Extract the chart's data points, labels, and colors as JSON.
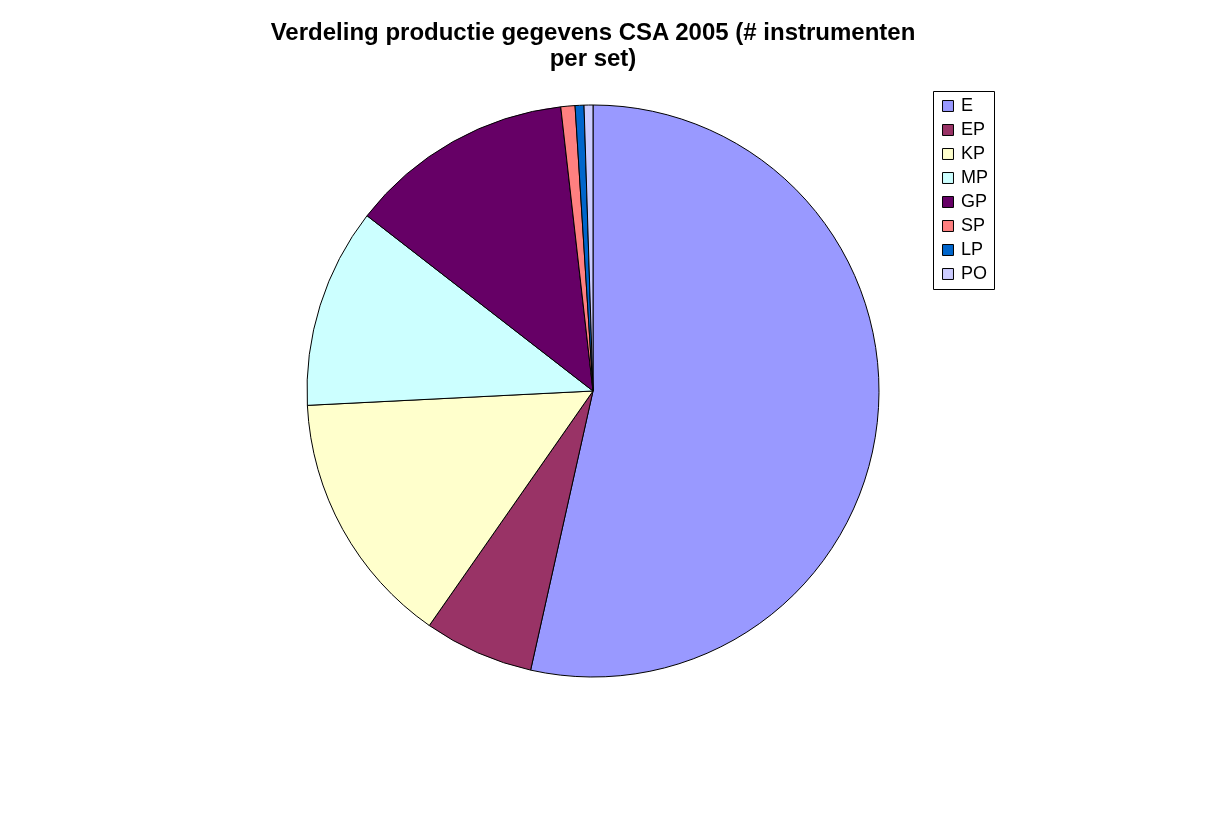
{
  "chart_data": {
    "type": "pie",
    "title": "Verdeling productie gegevens CSA 2005 (# instrumenten per set)",
    "categories": [
      "E",
      "EP",
      "KP",
      "MP",
      "GP",
      "SP",
      "LP",
      "PO"
    ],
    "values": [
      53.5,
      6.2,
      14.5,
      11.3,
      12.7,
      0.8,
      0.5,
      0.5
    ],
    "colors": [
      "#9999ff",
      "#993366",
      "#ffffcc",
      "#ccffff",
      "#660066",
      "#ff8080",
      "#0066cc",
      "#ccccff"
    ],
    "legend": "right"
  }
}
